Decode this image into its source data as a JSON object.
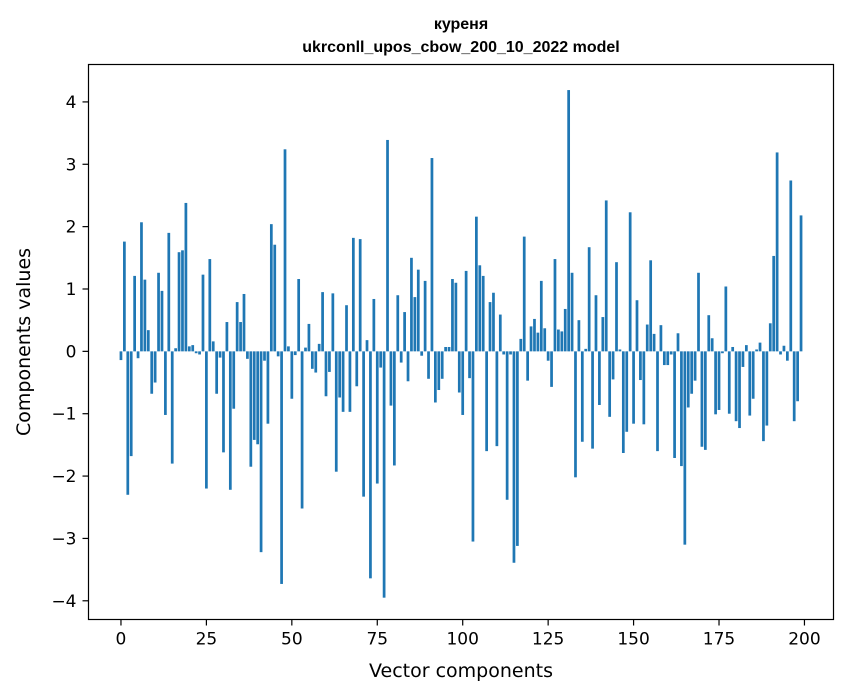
{
  "chart_data": {
    "type": "bar",
    "title": "куреня",
    "subtitle": "ukrconll_upos_cbow_200_10_2022 model",
    "xlabel": "Vector components",
    "ylabel": "Components values",
    "xlim": [
      -9.5,
      208.5
    ],
    "ylim": [
      -4.3,
      4.6
    ],
    "xticks": [
      0,
      25,
      50,
      75,
      100,
      125,
      150,
      175,
      200
    ],
    "yticks": [
      -4,
      -3,
      -2,
      -1,
      0,
      1,
      2,
      3,
      4
    ],
    "ytick_labels": [
      "−4",
      "−3",
      "−2",
      "−1",
      "0",
      "1",
      "2",
      "3",
      "4"
    ],
    "bar_color": "#1f77b4",
    "x": [
      0,
      1,
      2,
      3,
      4,
      5,
      6,
      7,
      8,
      9,
      10,
      11,
      12,
      13,
      14,
      15,
      16,
      17,
      18,
      19,
      20,
      21,
      22,
      23,
      24,
      25,
      26,
      27,
      28,
      29,
      30,
      31,
      32,
      33,
      34,
      35,
      36,
      37,
      38,
      39,
      40,
      41,
      42,
      43,
      44,
      45,
      46,
      47,
      48,
      49,
      50,
      51,
      52,
      53,
      54,
      55,
      56,
      57,
      58,
      59,
      60,
      61,
      62,
      63,
      64,
      65,
      66,
      67,
      68,
      69,
      70,
      71,
      72,
      73,
      74,
      75,
      76,
      77,
      78,
      79,
      80,
      81,
      82,
      83,
      84,
      85,
      86,
      87,
      88,
      89,
      90,
      91,
      92,
      93,
      94,
      95,
      96,
      97,
      98,
      99,
      100,
      101,
      102,
      103,
      104,
      105,
      106,
      107,
      108,
      109,
      110,
      111,
      112,
      113,
      114,
      115,
      116,
      117,
      118,
      119,
      120,
      121,
      122,
      123,
      124,
      125,
      126,
      127,
      128,
      129,
      130,
      131,
      132,
      133,
      134,
      135,
      136,
      137,
      138,
      139,
      140,
      141,
      142,
      143,
      144,
      145,
      146,
      147,
      148,
      149,
      150,
      151,
      152,
      153,
      154,
      155,
      156,
      157,
      158,
      159,
      160,
      161,
      162,
      163,
      164,
      165,
      166,
      167,
      168,
      169,
      170,
      171,
      172,
      173,
      174,
      175,
      176,
      177,
      178,
      179,
      180,
      181,
      182,
      183,
      184,
      185,
      186,
      187,
      188,
      189,
      190,
      191,
      192,
      193,
      194,
      195,
      196,
      197,
      198,
      199
    ],
    "values": [
      -0.14,
      1.76,
      -2.3,
      -1.68,
      1.21,
      -0.11,
      2.07,
      1.15,
      0.34,
      -0.68,
      -0.5,
      1.26,
      0.97,
      -1.02,
      1.9,
      -1.8,
      0.05,
      1.59,
      1.62,
      2.38,
      0.08,
      0.1,
      -0.03,
      -0.05,
      1.23,
      -2.2,
      1.48,
      0.16,
      -0.68,
      -0.1,
      -1.62,
      0.47,
      -2.22,
      -0.92,
      0.79,
      0.47,
      0.92,
      -0.12,
      -1.85,
      -1.42,
      -1.49,
      -3.22,
      -0.15,
      -1.16,
      2.04,
      1.71,
      -0.08,
      -3.73,
      3.24,
      0.08,
      -0.76,
      -0.06,
      1.16,
      -2.52,
      0.06,
      0.44,
      -0.28,
      -0.34,
      0.12,
      0.95,
      -0.72,
      -0.33,
      0.93,
      -1.93,
      -0.74,
      -0.97,
      0.74,
      -0.97,
      1.82,
      -0.56,
      1.8,
      -2.33,
      0.18,
      -3.64,
      0.84,
      -2.12,
      -0.26,
      -3.95,
      3.39,
      -0.87,
      -1.83,
      0.9,
      -0.18,
      0.63,
      -0.48,
      1.5,
      0.87,
      1.31,
      -0.07,
      1.13,
      -0.44,
      3.1,
      -0.82,
      -0.62,
      -0.44,
      0.07,
      0.07,
      1.16,
      1.1,
      -0.66,
      -1.02,
      1.29,
      -0.43,
      -3.05,
      2.16,
      1.38,
      1.21,
      -1.6,
      0.79,
      0.94,
      -1.52,
      0.59,
      -0.05,
      -2.38,
      -0.05,
      -3.39,
      -3.12,
      0.2,
      1.84,
      -0.47,
      0.4,
      0.52,
      0.3,
      1.13,
      0.37,
      -0.15,
      -0.57,
      1.48,
      0.35,
      0.32,
      0.68,
      4.19,
      1.26,
      -2.02,
      0.5,
      -1.45,
      0.04,
      1.67,
      -1.56,
      0.9,
      -0.86,
      0.55,
      2.42,
      -1.05,
      -0.45,
      1.43,
      0.03,
      -1.63,
      -1.29,
      2.23,
      -1.16,
      0.82,
      -0.46,
      -1.17,
      0.43,
      1.46,
      0.28,
      -1.6,
      0.42,
      -0.22,
      -0.22,
      -0.05,
      -1.71,
      0.29,
      -1.84,
      -3.1,
      -0.9,
      -0.68,
      -0.47,
      1.26,
      -1.53,
      -1.58,
      0.58,
      0.21,
      -1.01,
      -0.94,
      -0.03,
      1.04,
      -1.0,
      0.07,
      -1.12,
      -1.23,
      -0.25,
      0.1,
      -1.03,
      -0.76,
      0.03,
      0.14,
      -1.44,
      -1.19,
      0.45,
      1.53,
      3.19,
      -0.05,
      0.09,
      -0.15,
      2.74,
      -1.12,
      -0.8,
      2.18
    ]
  }
}
